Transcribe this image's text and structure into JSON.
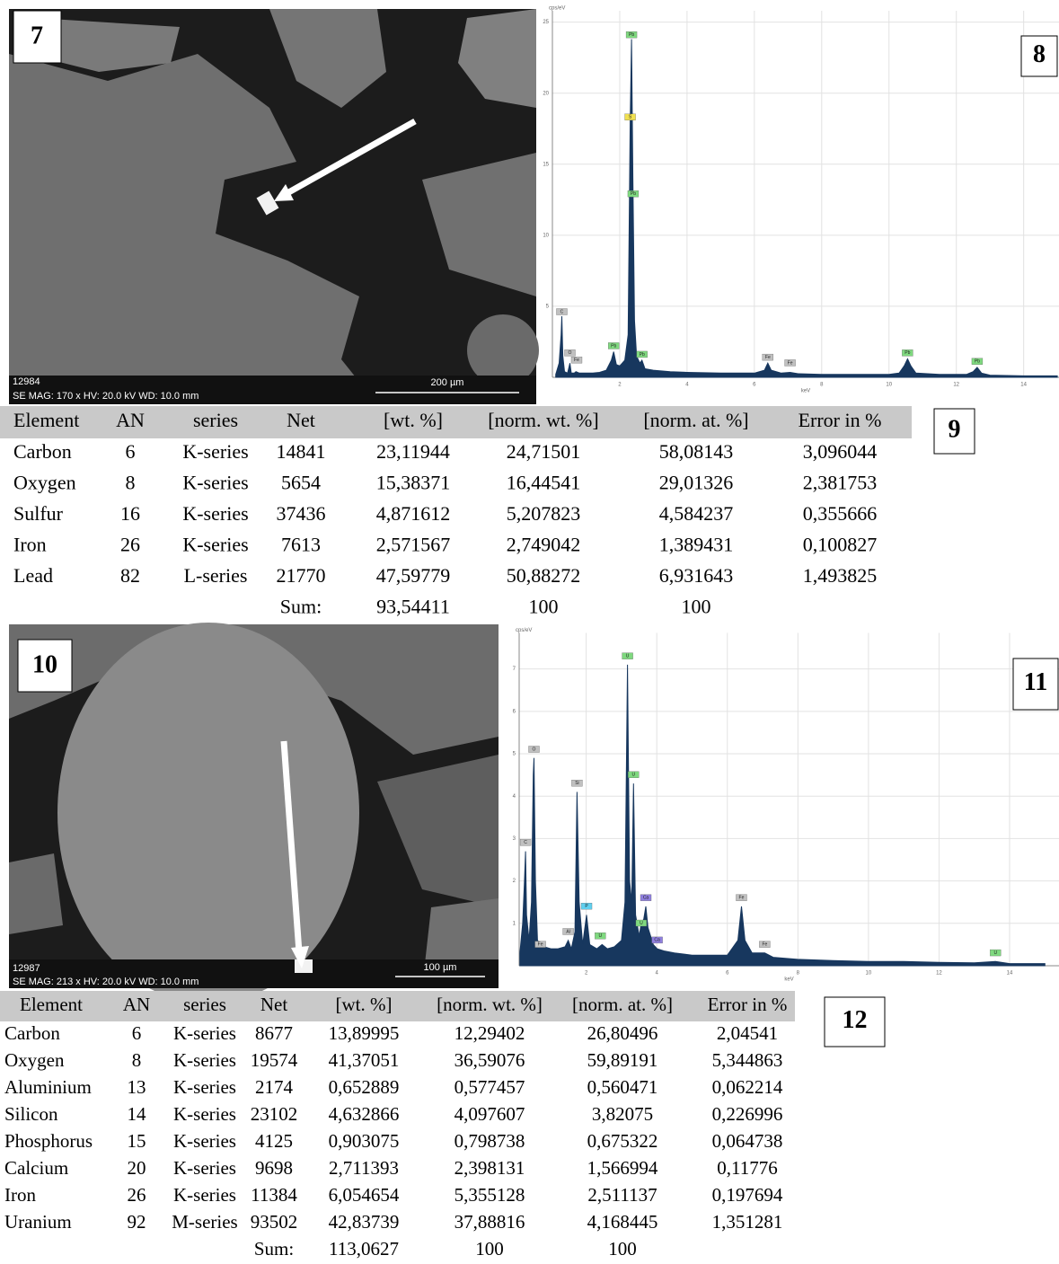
{
  "images": [
    {
      "label": "7",
      "id": "12984",
      "info": "SE MAG: 170 x HV: 20.0 kV WD: 10.0 mm",
      "scale": "200 µm"
    },
    {
      "label": "10",
      "id": "12987",
      "info": "SE MAG: 213 x HV: 20.0 kV WD: 10.0 mm",
      "scale": "100 µm"
    }
  ],
  "chart_data": [
    {
      "type": "area",
      "label": "8",
      "x_label": "keV",
      "y_label": "cps/eV",
      "color": "#17375e",
      "x": [
        0.1,
        0.2,
        0.26,
        0.28,
        0.31,
        0.36,
        0.45,
        0.52,
        0.56,
        0.65,
        0.7,
        0.8,
        1.0,
        1.2,
        1.4,
        1.6,
        1.75,
        1.82,
        1.9,
        2.0,
        2.15,
        2.25,
        2.31,
        2.35,
        2.39,
        2.44,
        2.5,
        2.6,
        2.66,
        2.75,
        3.0,
        3.5,
        4.0,
        5.0,
        6.0,
        6.3,
        6.4,
        6.5,
        6.8,
        7.06,
        7.3,
        8.0,
        9.0,
        10.0,
        10.3,
        10.45,
        10.55,
        10.65,
        10.8,
        11.5,
        12.3,
        12.5,
        12.62,
        12.75,
        13.0,
        14.0,
        15.0
      ],
      "values": [
        0.2,
        1.0,
        3.0,
        4.3,
        1.5,
        0.4,
        0.3,
        1.0,
        0.3,
        0.3,
        0.4,
        0.3,
        0.3,
        0.3,
        0.35,
        0.5,
        1.2,
        1.8,
        0.9,
        0.8,
        1.2,
        3.0,
        18.0,
        23.8,
        14.0,
        4.0,
        1.5,
        1.0,
        1.2,
        0.6,
        0.5,
        0.4,
        0.35,
        0.3,
        0.3,
        0.5,
        1.0,
        0.5,
        0.3,
        0.35,
        0.25,
        0.2,
        0.2,
        0.2,
        0.3,
        0.8,
        1.3,
        0.8,
        0.3,
        0.2,
        0.2,
        0.4,
        0.7,
        0.3,
        0.15,
        0.1,
        0.1
      ],
      "xlim": [
        0,
        15.05
      ],
      "ylim": [
        0,
        25.8
      ],
      "xticks": [
        2,
        4,
        6,
        8,
        10,
        12,
        14
      ],
      "yticks": [
        5,
        10,
        15,
        20,
        25
      ],
      "grid": true,
      "annotations": [
        {
          "x": 2.35,
          "y": 23.8,
          "label": "Pb",
          "color": "#7fd97f"
        },
        {
          "x": 2.31,
          "y": 18,
          "label": "S",
          "color": "#f0e050"
        },
        {
          "x": 2.4,
          "y": 12.6,
          "label": "Pb",
          "color": "#7fd97f"
        },
        {
          "x": 0.28,
          "y": 4.3,
          "label": "C",
          "color": "#c0c0c0"
        },
        {
          "x": 0.52,
          "y": 1.4,
          "label": "O",
          "color": "#c0c0c0"
        },
        {
          "x": 0.72,
          "y": 0.9,
          "label": "Fe",
          "color": "#c0c0c0"
        },
        {
          "x": 1.82,
          "y": 1.9,
          "label": "Pb",
          "color": "#7fd97f"
        },
        {
          "x": 2.66,
          "y": 1.3,
          "label": "Pb",
          "color": "#7fd97f"
        },
        {
          "x": 6.4,
          "y": 1.1,
          "label": "Fe",
          "color": "#c0c0c0"
        },
        {
          "x": 7.06,
          "y": 0.7,
          "label": "Fe",
          "color": "#c0c0c0"
        },
        {
          "x": 10.55,
          "y": 1.4,
          "label": "Pb",
          "color": "#7fd97f"
        },
        {
          "x": 12.62,
          "y": 0.8,
          "label": "Pb",
          "color": "#7fd97f"
        }
      ]
    },
    {
      "type": "area",
      "label": "11",
      "x_label": "keV",
      "y_label": "cps/eV",
      "color": "#17375e",
      "x": [
        0.12,
        0.2,
        0.25,
        0.28,
        0.31,
        0.38,
        0.45,
        0.5,
        0.52,
        0.56,
        0.62,
        0.7,
        0.8,
        1.0,
        1.2,
        1.4,
        1.49,
        1.58,
        1.68,
        1.74,
        1.8,
        1.9,
        2.01,
        2.1,
        2.3,
        2.45,
        2.6,
        2.8,
        3.0,
        3.1,
        3.17,
        3.23,
        3.29,
        3.34,
        3.4,
        3.5,
        3.56,
        3.63,
        3.69,
        3.75,
        3.9,
        4.01,
        4.2,
        4.5,
        5.0,
        5.5,
        6.0,
        6.3,
        6.4,
        6.5,
        6.7,
        7.06,
        7.3,
        8.0,
        9.0,
        10.0,
        11.0,
        12.0,
        13.0,
        13.6,
        14.0,
        15.0
      ],
      "values": [
        0.3,
        1.0,
        2.0,
        2.7,
        1.2,
        0.6,
        1.5,
        4.5,
        4.9,
        2.0,
        0.6,
        0.5,
        0.45,
        0.4,
        0.4,
        0.45,
        0.6,
        0.4,
        0.8,
        4.1,
        1.5,
        0.5,
        1.2,
        0.5,
        0.4,
        0.5,
        0.4,
        0.45,
        0.6,
        1.5,
        7.1,
        2.0,
        1.5,
        4.3,
        1.2,
        0.7,
        1.0,
        1.1,
        1.4,
        0.9,
        0.5,
        0.4,
        0.35,
        0.3,
        0.25,
        0.25,
        0.25,
        0.6,
        1.4,
        0.6,
        0.3,
        0.3,
        0.2,
        0.15,
        0.12,
        0.1,
        0.1,
        0.08,
        0.07,
        0.1,
        0.05,
        0.05
      ],
      "xlim": [
        0.1,
        15.4
      ],
      "ylim": [
        0,
        7.85
      ],
      "xticks": [
        2,
        4,
        6,
        8,
        10,
        12,
        14
      ],
      "yticks": [
        1,
        2,
        3,
        4,
        5,
        6,
        7
      ],
      "grid": true,
      "annotations": [
        {
          "x": 0.28,
          "y": 2.8,
          "label": "C",
          "color": "#c0c0c0"
        },
        {
          "x": 0.52,
          "y": 5.0,
          "label": "O",
          "color": "#c0c0c0"
        },
        {
          "x": 0.7,
          "y": 0.4,
          "label": "Fe",
          "color": "#c0c0c0"
        },
        {
          "x": 1.49,
          "y": 0.7,
          "label": "Al",
          "color": "#c0c0c0"
        },
        {
          "x": 1.74,
          "y": 4.2,
          "label": "Si",
          "color": "#c0c0c0"
        },
        {
          "x": 2.01,
          "y": 1.3,
          "label": "P",
          "color": "#60d0f0"
        },
        {
          "x": 2.4,
          "y": 0.6,
          "label": "U",
          "color": "#7fd97f"
        },
        {
          "x": 3.17,
          "y": 7.2,
          "label": "U",
          "color": "#7fd97f"
        },
        {
          "x": 3.34,
          "y": 4.4,
          "label": "U",
          "color": "#7fd97f"
        },
        {
          "x": 3.56,
          "y": 0.9,
          "label": "U",
          "color": "#7fd97f"
        },
        {
          "x": 3.69,
          "y": 1.5,
          "label": "Ca",
          "color": "#9080e0"
        },
        {
          "x": 4.01,
          "y": 0.5,
          "label": "Ca",
          "color": "#9080e0"
        },
        {
          "x": 6.4,
          "y": 1.5,
          "label": "Fe",
          "color": "#c0c0c0"
        },
        {
          "x": 7.06,
          "y": 0.4,
          "label": "Fe",
          "color": "#c0c0c0"
        },
        {
          "x": 13.6,
          "y": 0.2,
          "label": "U",
          "color": "#7fd97f"
        }
      ]
    }
  ],
  "tables": [
    {
      "label": "9",
      "header": [
        "Element",
        "AN",
        "series",
        "Net",
        "[wt. %]",
        "[norm. wt. %]",
        "[norm. at. %]",
        "Error in %"
      ],
      "rows": [
        [
          "Carbon",
          "6",
          "K-series",
          "14841",
          "23,11944",
          "24,71501",
          "58,08143",
          "3,096044"
        ],
        [
          "Oxygen",
          "8",
          "K-series",
          "5654",
          "15,38371",
          "16,44541",
          "29,01326",
          "2,381753"
        ],
        [
          "Sulfur",
          "16",
          "K-series",
          "37436",
          "4,871612",
          "5,207823",
          "4,584237",
          "0,355666"
        ],
        [
          "Iron",
          "26",
          "K-series",
          "7613",
          "2,571567",
          "2,749042",
          "1,389431",
          "0,100827"
        ],
        [
          "Lead",
          "82",
          "L-series",
          "21770",
          "47,59779",
          "50,88272",
          "6,931643",
          "1,493825"
        ]
      ],
      "sum": [
        "Sum:",
        "93,54411",
        "100",
        "100"
      ]
    },
    {
      "label": "12",
      "header": [
        "Element",
        "AN",
        "series",
        "Net",
        "[wt. %]",
        "[norm. wt. %]",
        "[norm. at. %]",
        "Error in %"
      ],
      "rows": [
        [
          "Carbon",
          "6",
          "K-series",
          "8677",
          "13,89995",
          "12,29402",
          "26,80496",
          "2,04541"
        ],
        [
          "Oxygen",
          "8",
          "K-series",
          "19574",
          "41,37051",
          "36,59076",
          "59,89191",
          "5,344863"
        ],
        [
          "Aluminium",
          "13",
          "K-series",
          "2174",
          "0,652889",
          "0,577457",
          "0,560471",
          "0,062214"
        ],
        [
          "Silicon",
          "14",
          "K-series",
          "23102",
          "4,632866",
          "4,097607",
          "3,82075",
          "0,226996"
        ],
        [
          "Phosphorus",
          "15",
          "K-series",
          "4125",
          "0,903075",
          "0,798738",
          "0,675322",
          "0,064738"
        ],
        [
          "Calcium",
          "20",
          "K-series",
          "9698",
          "2,711393",
          "2,398131",
          "1,566994",
          "0,11776"
        ],
        [
          "Iron",
          "26",
          "K-series",
          "11384",
          "6,054654",
          "5,355128",
          "2,511137",
          "0,197694"
        ],
        [
          "Uranium",
          "92",
          "M-series",
          "93502",
          "42,83739",
          "37,88816",
          "4,168445",
          "1,351281"
        ]
      ],
      "sum": [
        "Sum:",
        "113,0627",
        "100",
        "100"
      ]
    }
  ]
}
